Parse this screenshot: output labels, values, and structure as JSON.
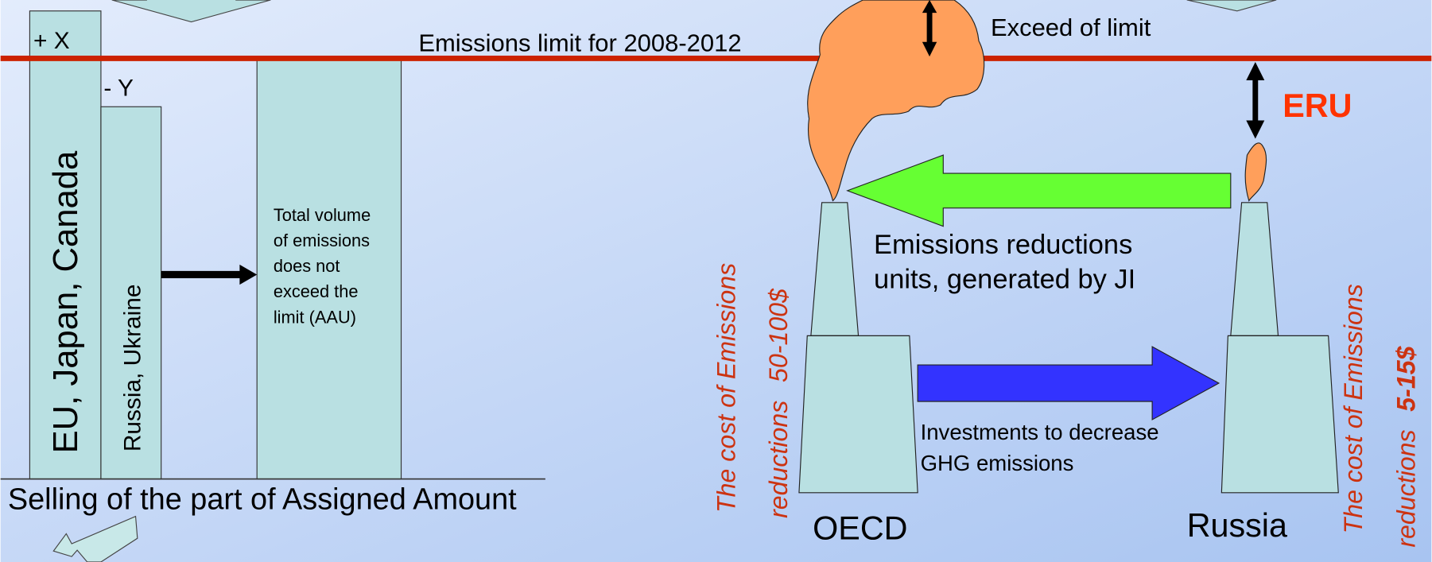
{
  "left_panel": {
    "bars": [
      {
        "label": "EU, Japan, Canada",
        "delta": "+ X"
      },
      {
        "label": "Russia, Ukraine",
        "delta": "- Y"
      },
      {
        "lines": [
          "Total volume",
          "of emissions",
          "does not",
          "exceed the",
          "limit (AAU)"
        ]
      }
    ],
    "limit_label": "Emissions limit for 2008-2012",
    "caption": "Selling of the part of Assigned Amount"
  },
  "right_panel": {
    "exceed_label": "Exceed of limit",
    "eru_label": "ERU",
    "transfer_label": [
      "Emissions reductions",
      "units, generated by JI"
    ],
    "investment_label": [
      "Investments to decrease",
      "GHG emissions"
    ],
    "countries": [
      {
        "name": "OECD",
        "cost_line1": "The cost of Emissions",
        "cost_prefix": "reductions",
        "cost_amount": "50-100$"
      },
      {
        "name": "Russia",
        "cost_line1": "The cost of Emissions",
        "cost_prefix": "reductions",
        "cost_amount": "5-15$"
      }
    ]
  }
}
